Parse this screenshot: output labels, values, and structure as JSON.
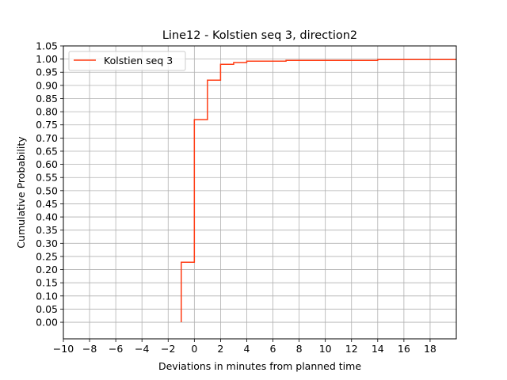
{
  "chart_data": {
    "type": "line",
    "step": "post",
    "title": "Line12 - Kolstien seq 3, direction2",
    "xlabel": "Deviations in minutes from planned time",
    "ylabel": "Cumulative Probability",
    "xlim": [
      -10,
      20
    ],
    "ylim": [
      -0.063,
      1.05
    ],
    "x_ticks": [
      -10,
      -8,
      -6,
      -4,
      -2,
      0,
      2,
      4,
      6,
      8,
      10,
      12,
      14,
      16,
      18
    ],
    "x_tick_labels": [
      "−10",
      "−8",
      "−6",
      "−4",
      "−2",
      "0",
      "2",
      "4",
      "6",
      "8",
      "10",
      "12",
      "14",
      "16",
      "18"
    ],
    "y_ticks": [
      0.0,
      0.05,
      0.1,
      0.15,
      0.2,
      0.25,
      0.3,
      0.35,
      0.4,
      0.45,
      0.5,
      0.55,
      0.6,
      0.65,
      0.7,
      0.75,
      0.8,
      0.85,
      0.9,
      0.95,
      1.0,
      1.05
    ],
    "y_tick_labels": [
      "0.00",
      "0.05",
      "0.10",
      "0.15",
      "0.20",
      "0.25",
      "0.30",
      "0.35",
      "0.40",
      "0.45",
      "0.50",
      "0.55",
      "0.60",
      "0.65",
      "0.70",
      "0.75",
      "0.80",
      "0.85",
      "0.90",
      "0.95",
      "1.00",
      "1.05"
    ],
    "grid": true,
    "legend": "top-left",
    "series": [
      {
        "name": "Kolstien seq 3",
        "color": "#ff3c14",
        "x": [
          -1,
          -1,
          0,
          1,
          2,
          3,
          4,
          7,
          14,
          20
        ],
        "y": [
          0.0,
          0.228,
          0.77,
          0.92,
          0.98,
          0.987,
          0.992,
          0.995,
          0.998,
          0.998
        ]
      }
    ]
  }
}
